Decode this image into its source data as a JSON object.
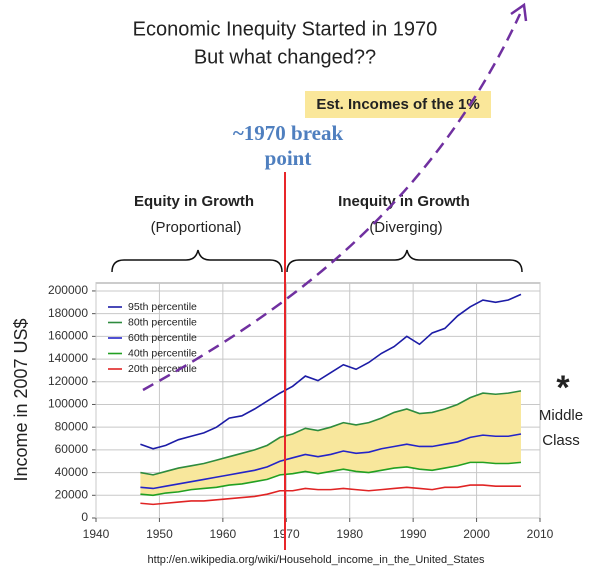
{
  "title": "Economic Inequity Started in 1970",
  "subtitle": "But what changed??",
  "annotations": {
    "top_earners": "Est. Incomes of the 1%",
    "break_line1": "~1970 break",
    "break_line2": "point",
    "left_heading": "Equity in Growth",
    "left_sub": "(Proportional)",
    "right_heading": "Inequity in Growth",
    "right_sub": "(Diverging)",
    "asterisk": "*",
    "middle": "Middle",
    "class": "Class"
  },
  "source": "http://en.wikipedia.org/wiki/Household_income_in_the_United_States",
  "chart_data": {
    "type": "line",
    "y_label": "Income in 2007 US$",
    "x": [
      1947,
      1949,
      1951,
      1953,
      1955,
      1957,
      1959,
      1961,
      1963,
      1965,
      1967,
      1969,
      1971,
      1973,
      1975,
      1977,
      1979,
      1981,
      1983,
      1985,
      1987,
      1989,
      1991,
      1993,
      1995,
      1997,
      1999,
      2001,
      2003,
      2005,
      2007
    ],
    "series": [
      {
        "name": "95th percentile",
        "color": "#1c1ca6",
        "values": [
          65000,
          61000,
          64000,
          69000,
          72000,
          75000,
          80000,
          88000,
          90000,
          96000,
          103000,
          110000,
          116000,
          125000,
          121000,
          128000,
          135000,
          131000,
          137000,
          145000,
          151000,
          160000,
          153000,
          163000,
          167000,
          178000,
          186000,
          192000,
          190000,
          192000,
          197000
        ]
      },
      {
        "name": "80th percentile",
        "color": "#2e8b3e",
        "values": [
          40000,
          38000,
          41000,
          44000,
          46000,
          48000,
          51000,
          54000,
          57000,
          60000,
          64000,
          71000,
          74000,
          79000,
          77000,
          80000,
          84000,
          82000,
          84000,
          88000,
          93000,
          96000,
          92000,
          93000,
          96000,
          100000,
          106000,
          110000,
          109000,
          110000,
          112000
        ]
      },
      {
        "name": "60th percentile",
        "color": "#2424c8",
        "values": [
          27000,
          26000,
          28000,
          30000,
          32000,
          34000,
          36000,
          38000,
          40000,
          42000,
          45000,
          50000,
          53000,
          56000,
          54000,
          56000,
          59000,
          57000,
          58000,
          61000,
          63000,
          65000,
          63000,
          63000,
          65000,
          67000,
          71000,
          73000,
          72000,
          72000,
          74000
        ]
      },
      {
        "name": "40th percentile",
        "color": "#22a022",
        "values": [
          21000,
          20000,
          22000,
          23000,
          25000,
          26000,
          27000,
          29000,
          30000,
          32000,
          34000,
          38000,
          39000,
          41000,
          39000,
          41000,
          43000,
          41000,
          40000,
          42000,
          44000,
          45000,
          43000,
          42000,
          44000,
          46000,
          49000,
          49000,
          48000,
          48000,
          49000
        ]
      },
      {
        "name": "20th percentile",
        "color": "#e02424",
        "values": [
          13000,
          12000,
          13000,
          14000,
          15000,
          15000,
          16000,
          17000,
          18000,
          19000,
          21000,
          24000,
          24000,
          26000,
          25000,
          25000,
          26000,
          25000,
          24000,
          25000,
          26000,
          27000,
          26000,
          25000,
          27000,
          27000,
          29000,
          29000,
          28000,
          28000,
          28000
        ]
      }
    ],
    "band_color": "#f8e79c",
    "xlim": [
      1940,
      2010
    ],
    "xticks": [
      1940,
      1950,
      1960,
      1970,
      1980,
      1990,
      2000,
      2010
    ],
    "ylim": [
      0,
      207000
    ],
    "yticks": [
      0,
      20000,
      40000,
      60000,
      80000,
      100000,
      120000,
      140000,
      160000,
      180000,
      200000
    ],
    "grid": true,
    "legend": "upper-left"
  }
}
